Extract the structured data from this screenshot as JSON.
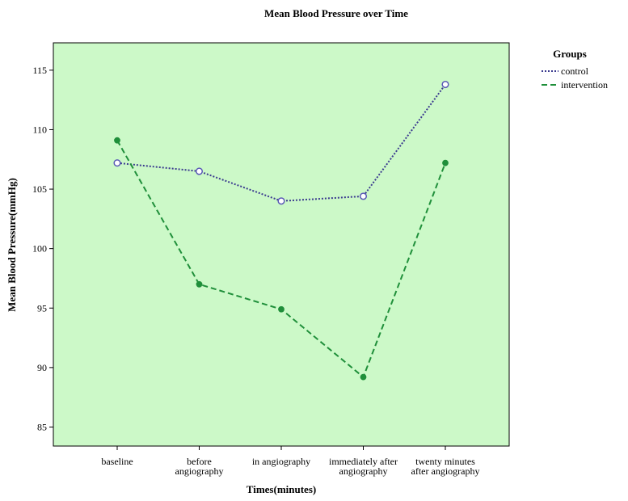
{
  "chart_data": {
    "type": "line",
    "title": "Mean Blood Pressure over Time",
    "xlabel": "Times(minutes)",
    "ylabel": "Mean Blood Pressure(mmHg)",
    "categories": [
      [
        "baseline"
      ],
      [
        "before",
        "angiography"
      ],
      [
        "in angiography"
      ],
      [
        "immediately after",
        "angiography"
      ],
      [
        "twenty minutes",
        "after angiography"
      ]
    ],
    "yticks": [
      "85",
      "90",
      "95",
      "100",
      "105",
      "110",
      "115"
    ],
    "ylim": [
      83.4,
      117.3
    ],
    "grid": false,
    "plot_background": "#ccf9c8",
    "legend": {
      "title": "Groups",
      "position": "right"
    },
    "series": [
      {
        "name": "control",
        "color": "#3b3b8f",
        "marker": "open-circle",
        "line": "dotted",
        "values": [
          107.2,
          106.5,
          104.0,
          104.4,
          113.8
        ]
      },
      {
        "name": "intervention",
        "color": "#1f8f3a",
        "marker": "filled-circle",
        "line": "dashed",
        "values": [
          109.1,
          97.0,
          94.9,
          89.2,
          107.2
        ]
      }
    ]
  }
}
